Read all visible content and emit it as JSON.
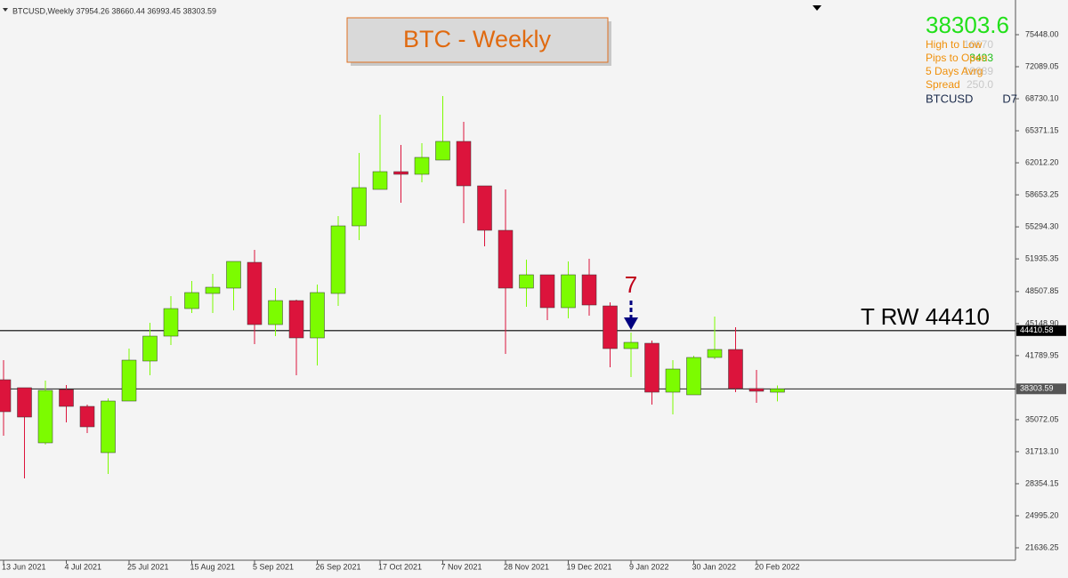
{
  "chart_data": {
    "type": "candlestick",
    "header": "BTCUSD,Weekly 37954.26 38660.44 36993.45 38303.59",
    "title": "BTC - Weekly",
    "categories": [
      "13 Jun 2021",
      null,
      null,
      "4 Jul 2021",
      null,
      null,
      "25 Jul 2021",
      null,
      null,
      "15 Aug 2021",
      null,
      null,
      "5 Sep 2021",
      null,
      null,
      "26 Sep 2021",
      null,
      null,
      "17 Oct 2021",
      null,
      null,
      "7 Nov 2021",
      null,
      null,
      "28 Nov 2021",
      null,
      null,
      "19 Dec 2021",
      null,
      null,
      "9 Jan 2022",
      null,
      null,
      "30 Jan 2022",
      null,
      null,
      "20 Feb 2022",
      null
    ],
    "open": [
      39263,
      38424,
      32642,
      38237,
      36465,
      31616,
      37025,
      41222,
      43833,
      46724,
      48309,
      48869,
      51573,
      45045,
      47563,
      43646,
      48309,
      55397,
      59221,
      61086,
      60806,
      62298,
      64257,
      59594,
      54931,
      48869,
      50268,
      46817,
      50268,
      47004,
      42527,
      43087,
      37957,
      37678,
      41595,
      42434,
      38331,
      37954.26
    ],
    "high": [
      41315,
      38424,
      39170,
      38704,
      36652,
      37305,
      42527,
      45232,
      48030,
      49615,
      50361,
      51667,
      52879,
      48869,
      47657,
      49242,
      56423,
      63044,
      67055,
      63884,
      64070,
      69013,
      66309,
      59594,
      59221,
      51853,
      50268,
      51667,
      51946,
      47377,
      44206,
      43367,
      41315,
      41781,
      45885,
      44765,
      40289,
      38660.44
    ],
    "low": [
      33388,
      28911,
      32455,
      34787,
      33668,
      29378,
      37025,
      39729,
      42900,
      46258,
      46258,
      46537,
      42994,
      43833,
      39729,
      40755,
      47004,
      53905,
      59221,
      57822,
      59967,
      62298,
      55677,
      53252,
      41968,
      46910,
      45512,
      45698,
      45978,
      40569,
      39543,
      36652,
      35626,
      37678,
      41408,
      37957,
      36838,
      36993.45
    ],
    "close": [
      35906,
      35346,
      38144,
      36465,
      34320,
      37025,
      41315,
      43833,
      46724,
      48403,
      48962,
      51667,
      45045,
      47563,
      43646,
      48403,
      55397,
      59407,
      61086,
      60806,
      62578,
      64257,
      59594,
      54931,
      48869,
      50268,
      46817,
      50268,
      47097,
      42527,
      43180,
      37957,
      40382,
      41595,
      42434,
      38331,
      38051,
      38303.59
    ],
    "up_color": "#7cfc00",
    "down_color": "#dc143c",
    "ylim": [
      20332,
      78339
    ],
    "yticks": [
      {
        "value": 75448,
        "label": "75448.00"
      },
      72089.05,
      {
        "value": 68730.1,
        "label": "68730.10"
      },
      65371.15,
      {
        "value": 62012.2,
        "label": "62012.20"
      },
      58653.25,
      {
        "value": 55294.3,
        "label": "55294.30"
      },
      51935.35,
      48507.85,
      {
        "value": 45148.9,
        "label": "45148.90"
      },
      41789.95,
      35072.05,
      {
        "value": 31713.1,
        "label": "31713.10"
      },
      28354.15,
      {
        "value": 24995.2,
        "label": "24995.20"
      },
      21636.25
    ],
    "price_lines": [
      44410.58,
      38303.59
    ],
    "line_annotation": "T RW 44410",
    "signal_label": "7",
    "info": {
      "price": 38303.6,
      "rows": [
        {
          "label": "High to Low",
          "value": 16670
        },
        {
          "label": "Pips to Open",
          "value": 3493
        },
        {
          "label": "5 Days Avrg",
          "value": 18689
        },
        {
          "label": "Spread",
          "value": {
            "value": 250,
            "label": "250.0"
          }
        }
      ],
      "symbol": "BTCUSD",
      "timeframe": "D7"
    }
  }
}
